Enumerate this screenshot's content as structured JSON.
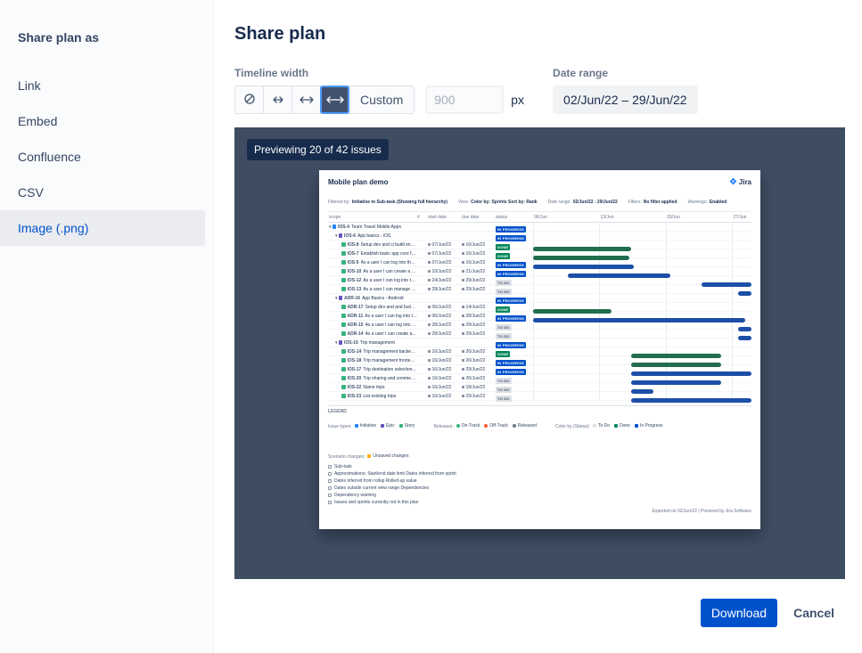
{
  "sidebar": {
    "title": "Share plan as",
    "items": [
      {
        "label": "Link",
        "selected": false
      },
      {
        "label": "Embed",
        "selected": false
      },
      {
        "label": "Confluence",
        "selected": false
      },
      {
        "label": "CSV",
        "selected": false
      },
      {
        "label": "Image (.png)",
        "selected": true
      }
    ]
  },
  "main": {
    "title": "Share plan",
    "timeline_width": {
      "label": "Timeline width",
      "selected_preset": "full",
      "custom_label": "Custom",
      "width_value": "900",
      "unit": "px"
    },
    "date_range": {
      "label": "Date range",
      "value": "02/Jun/22 – 29/Jun/22"
    },
    "preview_badge": "Previewing 20 of 42 issues",
    "footer": {
      "download": "Download",
      "cancel": "Cancel"
    }
  },
  "colors": {
    "accent_blue": "#0052cc",
    "selected_preset_bg": "#42526e",
    "focus_ring": "#4c9aff",
    "preview_backdrop": "#3f4d63",
    "badge_bg": "#172b4d",
    "bar_green": "#216e4e",
    "bar_blue": "#1d4fa8",
    "status_done": "#00875a",
    "status_in_progress": "#0052cc",
    "status_todo_bg": "#dfe1e6"
  },
  "plan_preview": {
    "title": "Mobile plan demo",
    "logo_text": "Jira",
    "meta": [
      {
        "label": "Filtered by:",
        "value": "Initiative to Sub-task (Showing full hierarchy)"
      },
      {
        "label": "View:",
        "value": "Color by: Sprints   Sort by: Rank"
      },
      {
        "label": "Date range:",
        "value": "02/Jun/22 - 29/Jun/22"
      },
      {
        "label": "Filters:",
        "value": "No filter applied"
      },
      {
        "label": "Warnings:",
        "value": "Enabled"
      }
    ],
    "columns": [
      "scope",
      "#",
      "start date",
      "due date",
      "status"
    ],
    "timeline_ticks": [
      {
        "label": "06/Jun",
        "pos": 0.0
      },
      {
        "label": "13/Jun",
        "pos": 0.304
      },
      {
        "label": "20/Jun",
        "pos": 0.608
      },
      {
        "label": "27/Jun",
        "pos": 0.912
      }
    ],
    "type_colors": {
      "initiative": "#2684ff",
      "epic": "#6554c0",
      "story": "#36b37e"
    },
    "rows": [
      {
        "key": "IOS-4",
        "summary": "Team Travel Mobile Apps",
        "type": "initiative",
        "indent": 0,
        "expand": true,
        "start": "",
        "due": "",
        "status": "IN PROGRESS",
        "bar": null
      },
      {
        "key": "IOS-6",
        "summary": "App basics - iOS",
        "type": "epic",
        "indent": 1,
        "expand": true,
        "start": "",
        "due": "",
        "status": "IN PROGRESS",
        "bar": null
      },
      {
        "key": "IOS-8",
        "summary": "Setup dev and ci build environment",
        "type": "story",
        "indent": 2,
        "expand": false,
        "start": "07/Jun/22",
        "due": "16/Jun/22",
        "status": "DONE",
        "bar": {
          "s": 0.0,
          "e": 0.45,
          "c": "green"
        }
      },
      {
        "key": "IOS-7",
        "summary": "Establish basic app core framework",
        "type": "story",
        "indent": 2,
        "expand": false,
        "start": "07/Jun/22",
        "due": "16/Jun/22",
        "status": "DONE",
        "bar": {
          "s": 0.0,
          "e": 0.44,
          "c": "green"
        }
      },
      {
        "key": "IOS-5",
        "summary": "As a user I can log into the system via t...",
        "type": "story",
        "indent": 2,
        "expand": false,
        "start": "07/Jun/22",
        "due": "16/Jun/22",
        "status": "IN PROGRESS",
        "bar": {
          "s": 0.0,
          "e": 0.46,
          "c": "blue"
        }
      },
      {
        "key": "IOS-10",
        "summary": "As a user I can create a custom user...",
        "type": "story",
        "indent": 2,
        "expand": false,
        "start": "10/Jun/22",
        "due": "21/Jun/22",
        "status": "IN PROGRESS",
        "bar": {
          "s": 0.16,
          "e": 0.63,
          "c": "blue"
        }
      },
      {
        "key": "IOS-12",
        "summary": "As a user I can log into the system via m...",
        "type": "story",
        "indent": 2,
        "expand": false,
        "start": "24/Jun/22",
        "due": "29/Jun/22",
        "status": "TO DO",
        "bar": {
          "s": 0.77,
          "e": 1.0,
          "c": "blue"
        }
      },
      {
        "key": "IOS-13",
        "summary": "As a user I can manage my profile",
        "type": "story",
        "indent": 2,
        "expand": false,
        "start": "28/Jun/22",
        "due": "29/Jun/22",
        "status": "TO DO",
        "bar": {
          "s": 0.94,
          "e": 1.0,
          "c": "blue"
        }
      },
      {
        "key": "ADR-16",
        "summary": "App Basics - Android",
        "type": "epic",
        "indent": 1,
        "expand": true,
        "start": "",
        "due": "",
        "status": "IN PROGRESS",
        "bar": null
      },
      {
        "key": "ADR-17",
        "summary": "Setup dev and and build environment",
        "type": "story",
        "indent": 2,
        "expand": false,
        "start": "06/Jun/22",
        "due": "14/Jun/22",
        "status": "DONE",
        "bar": {
          "s": 0.0,
          "e": 0.36,
          "c": "green"
        }
      },
      {
        "key": "ADR-11",
        "summary": "As a user I can log into the system via t...",
        "type": "story",
        "indent": 2,
        "expand": false,
        "start": "06/Jun/22",
        "due": "28/Jun/22",
        "status": "IN PROGRESS",
        "bar": {
          "s": 0.0,
          "e": 0.97,
          "c": "blue"
        }
      },
      {
        "key": "ADR-15",
        "summary": "As a user I can log into the system via m...",
        "type": "story",
        "indent": 2,
        "expand": false,
        "start": "28/Jun/22",
        "due": "29/Jun/22",
        "status": "TO DO",
        "bar": {
          "s": 0.94,
          "e": 1.0,
          "c": "blue"
        }
      },
      {
        "key": "ADR-14",
        "summary": "As a user I can create a custom user...",
        "type": "story",
        "indent": 2,
        "expand": false,
        "start": "28/Jun/22",
        "due": "29/Jun/22",
        "status": "TO DO",
        "bar": {
          "s": 0.94,
          "e": 1.0,
          "c": "blue"
        }
      },
      {
        "key": "IOS-16",
        "summary": "Trip management",
        "type": "epic",
        "indent": 1,
        "expand": true,
        "start": "",
        "due": "",
        "status": "IN PROGRESS",
        "bar": null
      },
      {
        "key": "IOS-14",
        "summary": "Trip management backend framework",
        "type": "story",
        "indent": 2,
        "expand": false,
        "start": "16/Jun/22",
        "due": "26/Jun/22",
        "status": "DONE",
        "bar": {
          "s": 0.45,
          "e": 0.86,
          "c": "green"
        }
      },
      {
        "key": "IOS-18",
        "summary": "Trip management frontend framework",
        "type": "story",
        "indent": 2,
        "expand": false,
        "start": "16/Jun/22",
        "due": "26/Jun/22",
        "status": "IN PROGRESS",
        "bar": {
          "s": 0.45,
          "e": 0.86,
          "c": "green"
        }
      },
      {
        "key": "IOS-17",
        "summary": "Trip destination selection - single dest...",
        "type": "story",
        "indent": 2,
        "expand": false,
        "start": "16/Jun/22",
        "due": "29/Jun/22",
        "status": "IN PROGRESS",
        "bar": {
          "s": 0.45,
          "e": 1.0,
          "c": "blue"
        }
      },
      {
        "key": "IOS-20",
        "summary": "Trip sharing and commenting",
        "type": "story",
        "indent": 2,
        "expand": false,
        "start": "16/Jun/22",
        "due": "26/Jun/22",
        "status": "TO DO",
        "bar": {
          "s": 0.45,
          "e": 0.86,
          "c": "blue"
        }
      },
      {
        "key": "IOS-22",
        "summary": "Name trips",
        "type": "story",
        "indent": 2,
        "expand": false,
        "start": "16/Jun/22",
        "due": "18/Jun/22",
        "status": "TO DO",
        "bar": {
          "s": 0.45,
          "e": 0.55,
          "c": "blue"
        }
      },
      {
        "key": "IOS-23",
        "summary": "List existing trips",
        "type": "story",
        "indent": 2,
        "expand": false,
        "start": "16/Jun/22",
        "due": "29/Jun/22",
        "status": "TO DO",
        "bar": {
          "s": 0.45,
          "e": 1.0,
          "c": "blue"
        }
      }
    ],
    "legend": {
      "heading": "LEGEND",
      "groups": [
        {
          "label": "Issue types:",
          "items": [
            {
              "swatch": "#2684ff",
              "text": "Initiative"
            },
            {
              "swatch": "#6554c0",
              "text": "Epic"
            },
            {
              "swatch": "#36b37e",
              "text": "Story"
            }
          ]
        },
        {
          "label": "Releases:",
          "items": [
            {
              "swatch": "#36b37e",
              "shape": "circle",
              "text": "On-Track"
            },
            {
              "swatch": "#ff5630",
              "shape": "circle",
              "text": "Off-Track"
            },
            {
              "swatch": "#6b778c",
              "shape": "circle",
              "text": "Released"
            }
          ]
        },
        {
          "label": "Color by (Status):",
          "items": [
            {
              "swatch": "#dfe1e6",
              "text": "To Do"
            },
            {
              "swatch": "#00875a",
              "text": "Done"
            },
            {
              "swatch": "#0052cc",
              "text": "In Progress"
            }
          ]
        },
        {
          "label": "Scenario changes:",
          "items": [
            {
              "swatch": "#ffab00",
              "text": "Unsaved changes"
            }
          ]
        }
      ],
      "extra_lines": [
        "Sub-task",
        "Approximations:  Start/end date limit    Dates inferred from sprint",
        "Dates inferred from rollup    Rolled-up value",
        "Dates outside current view range    Dependencies",
        "Dependency warning",
        "Issues and sprints currently not in this plan"
      ]
    },
    "footer": "Exported on 02/Jun/22 | Powered by Jira Software"
  }
}
